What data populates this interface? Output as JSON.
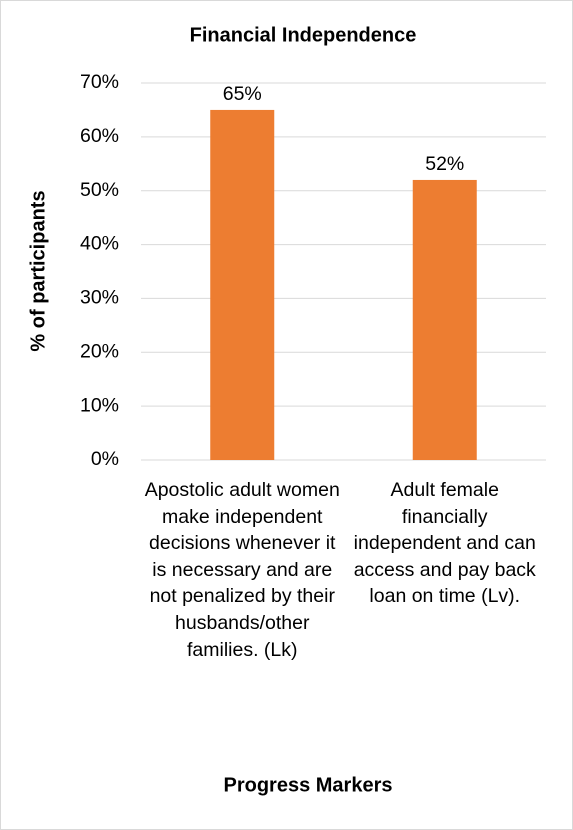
{
  "chart_data": {
    "type": "bar",
    "title": "Financial Independence",
    "x_label": "Progress Markers",
    "y_label": "% of participants",
    "categories": [
      "Apostolic adult women make independent decisions whenever it is necessary and are not penalized by their husbands/other families. (Lk)",
      "Adult female financially independent and can access and pay back loan on time (Lv)."
    ],
    "values": [
      65,
      52
    ],
    "value_labels": [
      "65%",
      "52%"
    ],
    "color": "#ed7d31",
    "ylim": [
      0,
      70
    ],
    "yticks": [
      {
        "value": 0,
        "label": "0%"
      },
      {
        "value": 10,
        "label": "10%"
      },
      {
        "value": 20,
        "label": "20%"
      },
      {
        "value": 30,
        "label": "30%"
      },
      {
        "value": 40,
        "label": "40%"
      },
      {
        "value": 50,
        "label": "50%"
      },
      {
        "value": 60,
        "label": "60%"
      },
      {
        "value": 70,
        "label": "70%"
      }
    ],
    "grid": true
  }
}
